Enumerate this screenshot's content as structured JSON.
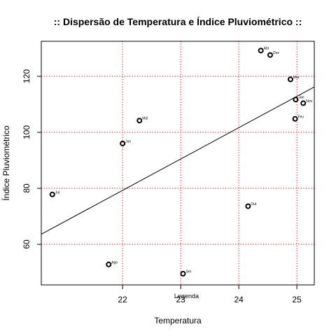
{
  "chart_data": {
    "type": "scatter",
    "title": ":: Dispersão de Temperatura e Índice Pluviométrico ::",
    "xlabel": "Temperatura",
    "ylabel": "Índice Pluviométrico",
    "xlim": [
      20.6,
      25.3
    ],
    "ylim": [
      45.5,
      132.5
    ],
    "x_ticks": [
      22,
      23,
      24,
      25
    ],
    "y_ticks": [
      60,
      80,
      100,
      120
    ],
    "grid": true,
    "grid_color": "#ff0000",
    "point_color": "#000000",
    "annotation": "Legenda",
    "annotation_x": 23.1,
    "annotation_y": 49.3,
    "points": [
      {
        "label": "Jan",
        "x": 24.98,
        "y": 111.7
      },
      {
        "label": "Fev",
        "x": 24.97,
        "y": 104.8
      },
      {
        "label": "Mar",
        "x": 24.89,
        "y": 118.9
      },
      {
        "label": "Abr",
        "x": 24.38,
        "y": 129.2
      },
      {
        "label": "Mai",
        "x": 22.29,
        "y": 104.2
      },
      {
        "label": "Jun",
        "x": 22.0,
        "y": 96.0
      },
      {
        "label": "Jul",
        "x": 20.79,
        "y": 77.8
      },
      {
        "label": "Ago",
        "x": 21.76,
        "y": 52.8
      },
      {
        "label": "Set",
        "x": 23.04,
        "y": 49.5
      },
      {
        "label": "Out",
        "x": 24.16,
        "y": 73.6
      },
      {
        "label": "Nov",
        "x": 25.11,
        "y": 110.4
      },
      {
        "label": "Dez",
        "x": 24.54,
        "y": 127.6
      }
    ],
    "regression_line": {
      "x": [
        20.6,
        25.3
      ],
      "y": [
        63.6,
        116.2
      ]
    }
  }
}
